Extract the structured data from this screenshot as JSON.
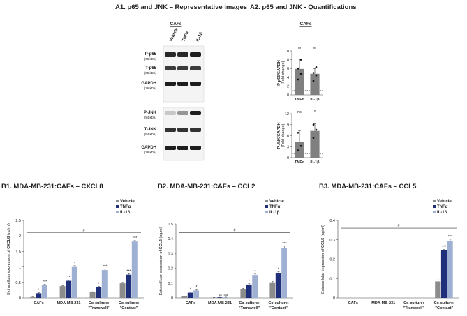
{
  "colors": {
    "vehicle": "#8c8c8c",
    "tnf": "#1f2f7a",
    "il1b": "#9fb1d3",
    "quant_bar": "#808080",
    "axis": "#444444"
  },
  "panel_a1": {
    "title": "A1. p65 and JNK – Representative images",
    "subtitle": "CAFs",
    "lanes": [
      "Vehicle",
      "TNFα",
      "IL-1β"
    ],
    "blots": [
      {
        "label": "P-p65",
        "kda": "(65 kDa)"
      },
      {
        "label": "T-p65",
        "kda": "(65 kDa)"
      },
      {
        "label": "GAPDH",
        "kda": "(36 kDa)"
      },
      {
        "label": "P-JNK",
        "kda": "(54 kDa)"
      },
      {
        "label": "T-JNK",
        "kda": "(54 kDa)"
      },
      {
        "label": "GAPDH",
        "kda": "(36 kDa)"
      }
    ]
  },
  "panel_a2": {
    "title": "A2. p65 and JNK - Quantifications",
    "subtitle": "CAFs"
  },
  "chart_data": [
    {
      "id": "a2-p65",
      "type": "bar",
      "ylabel_bold": "P-p65/GAPDH",
      "ylabel_unit": "(Fold change)",
      "categories": [
        "TNFα",
        "IL-1β"
      ],
      "values": [
        5.9,
        4.8
      ],
      "errors": [
        2.3,
        1.2
      ],
      "points": [
        [
          3.5,
          4.8,
          6.0,
          8.0
        ],
        [
          3.2,
          4.4,
          5.0,
          6.3
        ]
      ],
      "significance": [
        "**",
        "**"
      ],
      "ylim": [
        0,
        10
      ],
      "yticks": [
        "0",
        "2",
        "4",
        "6",
        "8",
        "10"
      ],
      "baseline": 1
    },
    {
      "id": "a2-jnk",
      "type": "bar",
      "ylabel_bold": "P-JNK/GAPDH",
      "ylabel_unit": "(Fold change)",
      "categories": [
        "TNFα",
        "IL-1β"
      ],
      "values": [
        4.2,
        7.3
      ],
      "errors": [
        3.2,
        2.0
      ],
      "points": [
        [
          2.0,
          3.2,
          6.8
        ],
        [
          5.4,
          7.6,
          9.0
        ]
      ],
      "significance": [
        "ns",
        "*"
      ],
      "ylim": [
        0,
        12
      ],
      "yticks": [
        "0",
        "3",
        "6",
        "9",
        "12"
      ],
      "baseline": 1
    },
    {
      "id": "b1",
      "type": "bar",
      "title": "B1. MDA-MB-231:CAFs – CXCL8",
      "ylabel_pre": "Extracellular expression of ",
      "ylabel_bold": "CXCL8",
      "ylabel_post": " (ng/ml)",
      "categories": [
        "CAFs",
        "MDA-MB-231",
        "Co-culture:\n\"Transwell\"",
        "Co-culture:\n\"Contact\""
      ],
      "series": [
        {
          "name": "Vehicle",
          "values": [
            0.02,
            0.38,
            0.18,
            0.47
          ],
          "errors": [
            0.01,
            0.02,
            0.02,
            0.03
          ],
          "sig": [
            "",
            "",
            "",
            ""
          ]
        },
        {
          "name": "TNFα",
          "values": [
            0.15,
            0.55,
            0.34,
            0.75
          ],
          "errors": [
            0.02,
            0.03,
            0.03,
            0.03
          ],
          "sig": [
            "*",
            "**",
            "*",
            "***"
          ]
        },
        {
          "name": "IL-1β",
          "values": [
            0.42,
            1.0,
            0.9,
            1.82
          ],
          "errors": [
            0.02,
            0.04,
            0.03,
            0.03
          ],
          "sig": [
            "***",
            "*",
            "***",
            "***"
          ]
        }
      ],
      "ylim": [
        0,
        2.5
      ],
      "yticks": [
        "0",
        "0.5",
        "1",
        "1.5",
        "2",
        "2.5"
      ],
      "hash_line_at": 2.1,
      "hash": "#"
    },
    {
      "id": "b2",
      "type": "bar",
      "title": "B2. MDA-MB-231:CAFs – CCL2",
      "ylabel_pre": "Extracellular expression of ",
      "ylabel_bold": "CCL2",
      "ylabel_post": " (ng/ml)",
      "categories": [
        "CAFs",
        "MDA-MB-231",
        "Co-culture:\n\"Transwell\"",
        "Co-culture:\n\"Contact\""
      ],
      "series": [
        {
          "name": "Vehicle",
          "values": [
            0.01,
            0.002,
            0.06,
            0.105
          ],
          "errors": [
            0.003,
            0.001,
            0.005,
            0.005
          ],
          "sig": [
            "",
            "",
            "",
            ""
          ]
        },
        {
          "name": "TNFα",
          "values": [
            0.035,
            0.003,
            0.09,
            0.165
          ],
          "errors": [
            0.005,
            0.001,
            0.006,
            0.012
          ],
          "sig": [
            "*",
            "ns",
            "*",
            "*"
          ]
        },
        {
          "name": "IL-1β",
          "values": [
            0.05,
            0.004,
            0.155,
            0.335
          ],
          "errors": [
            0.006,
            0.001,
            0.006,
            0.015
          ],
          "sig": [
            "*",
            "ns",
            "*",
            "***"
          ]
        }
      ],
      "ylim": [
        0,
        0.5
      ],
      "yticks": [
        "0",
        "0.1",
        "0.2",
        "0.3",
        "0.4",
        "0.5"
      ],
      "hash_line_at": 0.44,
      "hash": "#"
    },
    {
      "id": "b3",
      "type": "bar",
      "title": "B3. MDA-MB-231:CAFs – CCL5",
      "ylabel_pre": "Extracellular expression of ",
      "ylabel_bold": "CCL5",
      "ylabel_post": " (ng/ml)",
      "categories": [
        "CAFs",
        "MDA-MB-231",
        "Co-culture:\n\"Transwell\"",
        "Co-culture:\n\"Contact\""
      ],
      "series": [
        {
          "name": "Vehicle",
          "values": [
            0,
            0,
            0,
            0.085
          ],
          "errors": [
            0,
            0,
            0,
            0.008
          ],
          "sig": [
            "",
            "",
            "",
            ""
          ]
        },
        {
          "name": "TNFα",
          "values": [
            0,
            0,
            0,
            0.245
          ],
          "errors": [
            0,
            0,
            0,
            0.005
          ],
          "sig": [
            "",
            "",
            "",
            "***"
          ]
        },
        {
          "name": "IL-1β",
          "values": [
            0,
            0,
            0,
            0.295
          ],
          "errors": [
            0,
            0,
            0,
            0.008
          ],
          "sig": [
            "",
            "",
            "",
            "***"
          ]
        }
      ],
      "ylim": [
        0,
        0.4
      ],
      "yticks": [
        "0",
        "0.1",
        "0.2",
        "0.3",
        "0.4"
      ],
      "hash_line_at": 0.36,
      "hash": "#"
    }
  ]
}
